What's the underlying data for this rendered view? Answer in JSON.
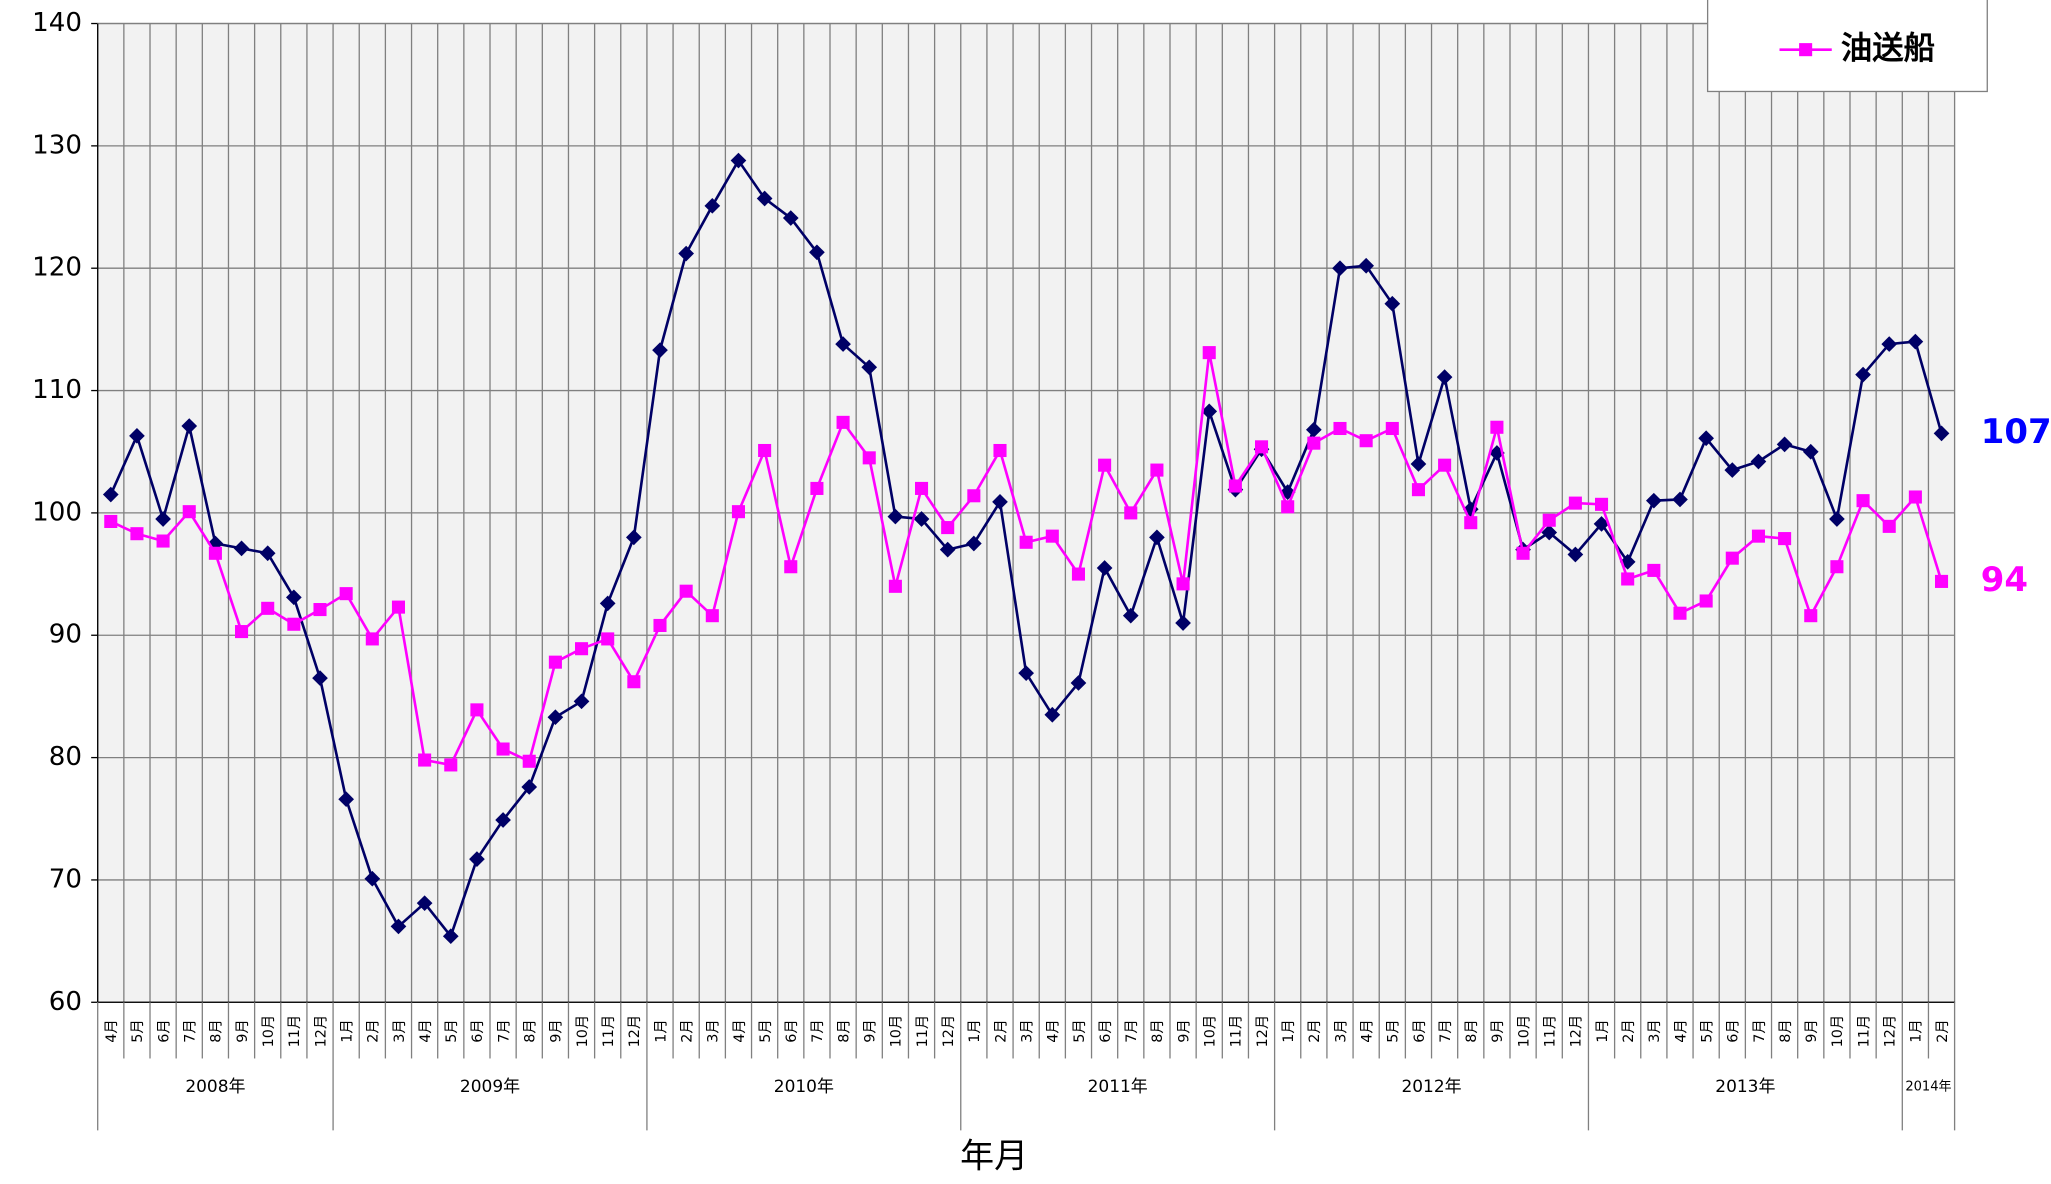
{
  "chart_data": {
    "type": "line",
    "x_label": "年月",
    "categories": [
      "4月",
      "5月",
      "6月",
      "7月",
      "8月",
      "9月",
      "10月",
      "11月",
      "12月",
      "1月",
      "2月",
      "3月",
      "4月",
      "5月",
      "6月",
      "7月",
      "8月",
      "9月",
      "10月",
      "11月",
      "12月",
      "1月",
      "2月",
      "3月",
      "4月",
      "5月",
      "6月",
      "7月",
      "8月",
      "9月",
      "10月",
      "11月",
      "12月",
      "1月",
      "2月",
      "3月",
      "4月",
      "5月",
      "6月",
      "7月",
      "8月",
      "9月",
      "10月",
      "11月",
      "12月",
      "1月",
      "2月",
      "3月",
      "4月",
      "5月",
      "6月",
      "7月",
      "8月",
      "9月",
      "10月",
      "11月",
      "12月",
      "1月",
      "2月",
      "3月",
      "4月",
      "5月",
      "6月",
      "7月",
      "8月",
      "9月",
      "10月",
      "11月",
      "12月",
      "1月",
      "2月"
    ],
    "category_years": [
      "2008年",
      null,
      null,
      null,
      null,
      null,
      null,
      null,
      null,
      "2009年",
      null,
      null,
      null,
      null,
      null,
      null,
      null,
      null,
      null,
      null,
      null,
      "2010年",
      null,
      null,
      null,
      null,
      null,
      null,
      null,
      null,
      null,
      null,
      null,
      "2011年",
      null,
      null,
      null,
      null,
      null,
      null,
      null,
      null,
      null,
      null,
      null,
      "2012年",
      null,
      null,
      null,
      null,
      null,
      null,
      null,
      null,
      null,
      null,
      null,
      "2013年",
      null,
      null,
      null,
      null,
      null,
      null,
      null,
      null,
      null,
      null,
      null,
      "2014年",
      null
    ],
    "series": [
      {
        "color": "#000066",
        "marker": "diamond",
        "label_color": "#0000ff",
        "values": [
          101.5,
          106.3,
          99.5,
          107.1,
          97.5,
          97.1,
          96.7,
          93.1,
          86.5,
          76.6,
          70.1,
          66.2,
          68.1,
          65.4,
          71.7,
          74.9,
          77.6,
          83.3,
          84.6,
          92.6,
          98.0,
          113.3,
          121.2,
          125.1,
          128.8,
          125.7,
          124.1,
          121.3,
          113.8,
          111.9,
          99.7,
          99.5,
          97.0,
          97.5,
          100.9,
          86.9,
          83.5,
          86.1,
          95.5,
          91.6,
          98.0,
          91.0,
          108.3,
          101.9,
          105.2,
          101.7,
          106.8,
          120.0,
          120.2,
          117.1,
          104.0,
          111.1,
          100.3,
          104.9,
          97.0,
          98.4,
          96.6,
          99.1,
          96.0,
          101.0,
          101.1,
          106.1,
          103.5,
          104.2,
          105.6,
          105.0,
          99.5,
          111.3,
          113.8,
          114.0,
          106.5
        ],
        "value_labels": [
          null,
          null,
          null,
          null,
          null,
          null,
          null,
          null,
          null,
          null,
          null,
          null,
          null,
          null,
          null,
          null,
          null,
          null,
          null,
          null,
          null,
          null,
          null,
          null,
          null,
          null,
          null,
          null,
          null,
          null,
          null,
          null,
          null,
          null,
          null,
          null,
          null,
          null,
          null,
          null,
          null,
          null,
          null,
          null,
          null,
          null,
          null,
          null,
          null,
          null,
          null,
          null,
          null,
          null,
          null,
          null,
          null,
          null,
          null,
          null,
          null,
          null,
          null,
          null,
          null,
          null,
          null,
          null,
          null,
          null,
          "107"
        ]
      },
      {
        "name": "油送船",
        "color": "#ff00ff",
        "marker": "square",
        "label_color": "#ff00ff",
        "values": [
          99.3,
          98.3,
          97.7,
          100.1,
          96.7,
          90.3,
          92.2,
          90.9,
          92.1,
          93.4,
          89.7,
          92.3,
          79.8,
          79.4,
          83.9,
          80.7,
          79.7,
          87.8,
          88.9,
          89.7,
          86.2,
          90.8,
          93.6,
          91.6,
          100.1,
          105.1,
          95.6,
          102.0,
          107.4,
          104.5,
          94.0,
          102.0,
          98.8,
          101.4,
          105.1,
          97.6,
          98.1,
          95.0,
          103.9,
          100.0,
          103.5,
          94.2,
          113.1,
          102.2,
          105.4,
          100.5,
          105.7,
          106.9,
          105.9,
          106.9,
          101.9,
          103.9,
          99.2,
          107.0,
          96.7,
          99.4,
          100.8,
          100.7,
          94.6,
          95.3,
          91.8,
          92.8,
          96.3,
          98.1,
          97.9,
          91.6,
          95.6,
          101.0,
          98.9,
          101.3,
          94.4
        ],
        "value_labels": [
          null,
          null,
          null,
          null,
          null,
          null,
          null,
          null,
          null,
          null,
          null,
          null,
          null,
          null,
          null,
          null,
          null,
          null,
          null,
          null,
          null,
          null,
          null,
          null,
          null,
          null,
          null,
          null,
          null,
          null,
          null,
          null,
          null,
          null,
          null,
          null,
          null,
          null,
          null,
          null,
          null,
          null,
          null,
          null,
          null,
          null,
          null,
          null,
          null,
          null,
          null,
          null,
          null,
          null,
          null,
          null,
          null,
          null,
          null,
          null,
          null,
          null,
          null,
          null,
          null,
          null,
          null,
          null,
          null,
          null,
          "94"
        ]
      }
    ],
    "ylim": [
      60,
      140
    ],
    "yticks": [
      60,
      70,
      80,
      90,
      100,
      110,
      120,
      130,
      140
    ],
    "grid": true,
    "legend": "top-right"
  }
}
